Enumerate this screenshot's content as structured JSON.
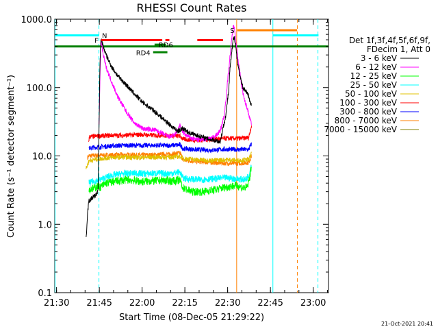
{
  "chart_data": {
    "type": "line",
    "title": "RHESSI Count Rates",
    "xlabel": "Start Time (08-Dec-05 21:29:22)",
    "ylabel": "Count Rate (s⁻¹ detector segment⁻¹)",
    "footer": "21-Oct-2021 20:41",
    "x_scale": "time (minutes after 21:29:22)",
    "y_scale": "log",
    "xlim": [
      0,
      96
    ],
    "ylim": [
      0.1,
      1000
    ],
    "x_ticks": [
      {
        "t": 0.63,
        "label": "21:30"
      },
      {
        "t": 15.63,
        "label": "21:45"
      },
      {
        "t": 30.63,
        "label": "22:00"
      },
      {
        "t": 45.63,
        "label": "22:15"
      },
      {
        "t": 60.63,
        "label": "22:30"
      },
      {
        "t": 75.63,
        "label": "22:45"
      },
      {
        "t": 90.63,
        "label": "23:00"
      }
    ],
    "y_ticks": [
      {
        "v": 0.1,
        "label": "0.1"
      },
      {
        "v": 1,
        "label": "1.0"
      },
      {
        "v": 10,
        "label": "10.0"
      },
      {
        "v": 100,
        "label": "100.0"
      },
      {
        "v": 1000,
        "label": "1000.0"
      }
    ],
    "grid": false,
    "legend": {
      "placement": "right",
      "header": [
        "Det 1f,3f,4f,5f,6f,9f,",
        "FDecim 1, Att 0"
      ],
      "entries": [
        {
          "name": "3 - 6 keV",
          "color": "#000000"
        },
        {
          "name": "6 - 12 keV",
          "color": "#ff00ff"
        },
        {
          "name": "12 - 25 keV",
          "color": "#00ff00"
        },
        {
          "name": "25 - 50 keV",
          "color": "#00ffff"
        },
        {
          "name": "50 - 100 keV",
          "color": "#e0c000"
        },
        {
          "name": "100 - 300 keV",
          "color": "#ff0000"
        },
        {
          "name": "300 - 800 keV",
          "color": "#0000ff"
        },
        {
          "name": "800 - 7000 keV",
          "color": "#ff8000"
        },
        {
          "name": "7000 - 15000 keV",
          "color": "#808000"
        }
      ]
    },
    "series": [
      {
        "name": "3 - 6 keV",
        "color": "#000000",
        "points": [
          [
            11,
            0.6
          ],
          [
            11.5,
            1.5
          ],
          [
            12,
            2.2
          ],
          [
            13,
            2.4
          ],
          [
            14.5,
            2.7
          ],
          [
            15.2,
            3.2
          ],
          [
            15.5,
            20
          ],
          [
            15.8,
            200
          ],
          [
            16.2,
            520
          ],
          [
            17,
            400
          ],
          [
            18,
            300
          ],
          [
            20,
            200
          ],
          [
            22,
            150
          ],
          [
            25,
            110
          ],
          [
            28,
            80
          ],
          [
            31,
            60
          ],
          [
            35,
            45
          ],
          [
            38,
            35
          ],
          [
            41,
            27
          ],
          [
            43,
            23
          ],
          [
            45,
            25
          ],
          [
            47,
            22
          ],
          [
            50,
            20
          ],
          [
            53,
            18
          ],
          [
            56,
            17
          ],
          [
            58,
            16
          ],
          [
            60,
            40
          ],
          [
            61,
            90
          ],
          [
            61.5,
            200
          ],
          [
            62,
            300
          ],
          [
            62.5,
            480
          ],
          [
            63,
            560
          ],
          [
            63.5,
            400
          ],
          [
            64,
            250
          ],
          [
            65,
            140
          ],
          [
            66,
            100
          ],
          [
            67,
            90
          ],
          [
            68,
            75
          ],
          [
            68.5,
            60
          ],
          [
            69,
            55
          ]
        ],
        "noise": 0.035
      },
      {
        "name": "6 - 12 keV",
        "color": "#ff00ff",
        "points": [
          [
            15.5,
            30
          ],
          [
            15.8,
            100
          ],
          [
            16.2,
            500
          ],
          [
            17,
            300
          ],
          [
            18,
            200
          ],
          [
            20,
            120
          ],
          [
            22,
            75
          ],
          [
            25,
            45
          ],
          [
            28,
            30
          ],
          [
            31,
            25
          ],
          [
            35,
            24
          ],
          [
            38,
            21
          ],
          [
            40,
            19
          ],
          [
            42,
            20
          ],
          [
            44,
            28
          ],
          [
            45,
            22
          ],
          [
            46,
            20
          ],
          [
            48,
            18
          ],
          [
            51,
            17
          ],
          [
            54,
            18
          ],
          [
            56,
            19
          ],
          [
            58,
            23
          ],
          [
            59.5,
            40
          ],
          [
            60.5,
            110
          ],
          [
            61.5,
            300
          ],
          [
            62.5,
            750
          ],
          [
            63,
            800
          ],
          [
            63.5,
            500
          ],
          [
            64.5,
            220
          ],
          [
            65.5,
            110
          ],
          [
            66.5,
            65
          ],
          [
            67.5,
            50
          ],
          [
            68.5,
            35
          ],
          [
            69,
            30
          ]
        ],
        "noise": 0.035
      },
      {
        "name": "12 - 25 keV",
        "color": "#00ff00",
        "points": [
          [
            12,
            3.2
          ],
          [
            14,
            3.4
          ],
          [
            15,
            3.6
          ],
          [
            16,
            3.5
          ],
          [
            18,
            4.0
          ],
          [
            22,
            4.3
          ],
          [
            26,
            4.5
          ],
          [
            30,
            4.2
          ],
          [
            34,
            4.3
          ],
          [
            38,
            4.4
          ],
          [
            41,
            4.3
          ],
          [
            44,
            4.4
          ],
          [
            45,
            3.4
          ],
          [
            48,
            3.0
          ],
          [
            52,
            3.0
          ],
          [
            56,
            3.2
          ],
          [
            60,
            3.5
          ],
          [
            62,
            3.6
          ],
          [
            64,
            3.7
          ],
          [
            66,
            3.4
          ],
          [
            67.5,
            3.5
          ],
          [
            68.2,
            4.5
          ],
          [
            69,
            7
          ]
        ],
        "noise": 0.06
      },
      {
        "name": "25 - 50 keV",
        "color": "#00ffff",
        "points": [
          [
            12,
            4.0
          ],
          [
            14,
            4.3
          ],
          [
            16,
            4.5
          ],
          [
            20,
            5.2
          ],
          [
            24,
            5.5
          ],
          [
            28,
            5.6
          ],
          [
            32,
            5.5
          ],
          [
            36,
            5.6
          ],
          [
            40,
            5.5
          ],
          [
            44,
            5.8
          ],
          [
            45,
            4.7
          ],
          [
            50,
            4.5
          ],
          [
            55,
            4.6
          ],
          [
            60,
            4.8
          ],
          [
            64,
            4.6
          ],
          [
            67,
            4.5
          ],
          [
            68.3,
            5.5
          ],
          [
            69,
            8
          ]
        ],
        "noise": 0.05
      },
      {
        "name": "50 - 100 keV",
        "color": "#e0c000",
        "points": [
          [
            11,
            6.5
          ],
          [
            12,
            8.5
          ],
          [
            15,
            9
          ],
          [
            20,
            9.5
          ],
          [
            25,
            9.6
          ],
          [
            30,
            9.5
          ],
          [
            35,
            9.6
          ],
          [
            40,
            9.6
          ],
          [
            44,
            9.8
          ],
          [
            45,
            9.2
          ],
          [
            50,
            8.8
          ],
          [
            55,
            8.6
          ],
          [
            60,
            8.8
          ],
          [
            65,
            8.6
          ],
          [
            68,
            8.8
          ],
          [
            69,
            11
          ]
        ],
        "noise": 0.035
      },
      {
        "name": "100 - 300 keV",
        "color": "#ff0000",
        "points": [
          [
            11.8,
            16
          ],
          [
            12.2,
            19
          ],
          [
            15,
            19.5
          ],
          [
            20,
            20
          ],
          [
            25,
            20
          ],
          [
            30,
            20.5
          ],
          [
            35,
            20
          ],
          [
            40,
            20
          ],
          [
            44,
            19.5
          ],
          [
            45,
            17.5
          ],
          [
            50,
            17
          ],
          [
            55,
            17.5
          ],
          [
            60,
            18
          ],
          [
            65,
            18
          ],
          [
            68,
            18.5
          ],
          [
            69,
            28
          ]
        ],
        "noise": 0.035
      },
      {
        "name": "300 - 800 keV",
        "color": "#0000ff",
        "points": [
          [
            12,
            13
          ],
          [
            15,
            13.5
          ],
          [
            20,
            14
          ],
          [
            25,
            14.3
          ],
          [
            30,
            14.2
          ],
          [
            35,
            14.3
          ],
          [
            40,
            14.2
          ],
          [
            44,
            14.5
          ],
          [
            45,
            12.8
          ],
          [
            50,
            12.3
          ],
          [
            55,
            12.2
          ],
          [
            60,
            12.5
          ],
          [
            65,
            12.4
          ],
          [
            68,
            12.5
          ],
          [
            69,
            15
          ]
        ],
        "noise": 0.035
      },
      {
        "name": "800 - 7000 keV",
        "color": "#ff8000",
        "points": [
          [
            11.5,
            9.5
          ],
          [
            12,
            10
          ],
          [
            15,
            10.2
          ],
          [
            20,
            10.3
          ],
          [
            25,
            10.4
          ],
          [
            30,
            10.3
          ],
          [
            35,
            10.4
          ],
          [
            40,
            10.6
          ],
          [
            44,
            11
          ],
          [
            45,
            8.7
          ],
          [
            50,
            8.3
          ],
          [
            55,
            8.0
          ],
          [
            60,
            7.8
          ],
          [
            65,
            7.8
          ],
          [
            68,
            8
          ],
          [
            69,
            10
          ]
        ],
        "noise": 0.035
      },
      {
        "name": "7000 - 15000 keV",
        "color": "#808000",
        "points": [],
        "noise": 0.0
      }
    ],
    "threshold_line": {
      "value": 400,
      "color": "#008000"
    },
    "annotations": [
      {
        "label": "F",
        "color": "#ff0000",
        "ranges": [
          [
            16.3,
            37.7
          ],
          [
            38.8,
            40.2
          ],
          [
            50,
            59
          ]
        ],
        "y": 495
      },
      {
        "label": "RD6",
        "color": "#008000",
        "ranges": [
          [
            35,
            39
          ]
        ],
        "y": 425
      },
      {
        "label": "RD4",
        "color": "#008000",
        "ranges": [
          [
            34.5,
            39.5
          ]
        ],
        "y": 328
      },
      {
        "label": "N",
        "color": "#00ffff",
        "ranges": [
          [
            0,
            15.6
          ],
          [
            76.5,
            92.5
          ]
        ],
        "y": 580
      },
      {
        "label": "S",
        "color": "#ff8000",
        "ranges": [
          [
            64,
            85
          ]
        ],
        "y": 690
      }
    ],
    "vlines": [
      {
        "t": 0.1,
        "color": "#00ffff",
        "dashed": false
      },
      {
        "t": 15.5,
        "color": "#00ffff",
        "dashed": true
      },
      {
        "t": 63.8,
        "color": "#ff8000",
        "dashed": false
      },
      {
        "t": 76.5,
        "color": "#00ffff",
        "dashed": false
      },
      {
        "t": 85.1,
        "color": "#ff8000",
        "dashed": true
      },
      {
        "t": 92.3,
        "color": "#00ffff",
        "dashed": true
      }
    ]
  }
}
